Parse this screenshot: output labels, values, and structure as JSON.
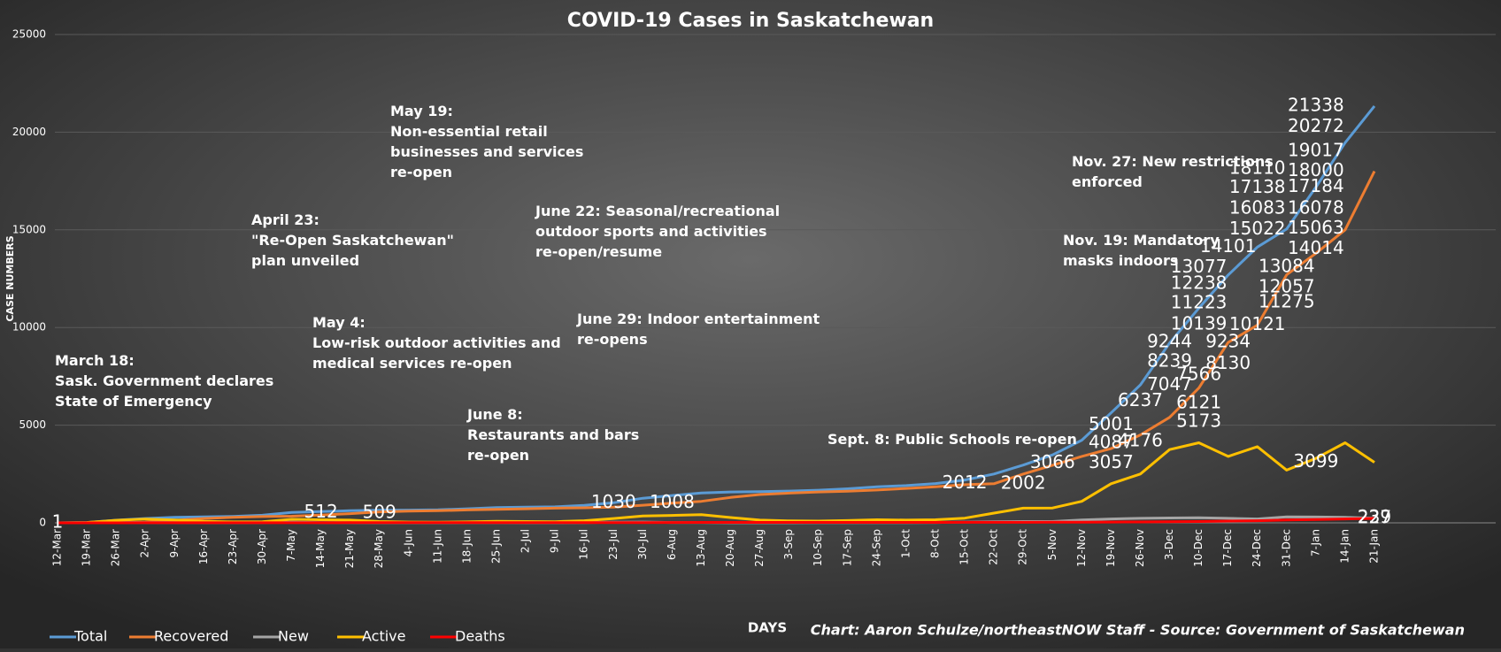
{
  "chart_data": {
    "type": "line",
    "title": "COVID-19 Cases in Saskatchewan",
    "x_label": "DAYS",
    "y_label": "CASE NUMBERS",
    "source": "Chart: Aaron Schulze/northeastNOW Staff - Source: Government of Saskatchewan",
    "categories": [
      "12-Mar",
      "19-Mar",
      "26-Mar",
      "2-Apr",
      "9-Apr",
      "16-Apr",
      "23-Apr",
      "30-Apr",
      "7-May",
      "14-May",
      "21-May",
      "28-May",
      "4-Jun",
      "11-Jun",
      "18-Jun",
      "25-Jun",
      "2-Jul",
      "9-Jul",
      "16-Jul",
      "23-Jul",
      "30-Jul",
      "6-Aug",
      "13-Aug",
      "20-Aug",
      "27-Aug",
      "3-Sep",
      "10-Sep",
      "17-Sep",
      "24-Sep",
      "1-Oct",
      "8-Oct",
      "15-Oct",
      "22-Oct",
      "29-Oct",
      "5-Nov",
      "12-Nov",
      "19-Nov",
      "26-Nov",
      "3-Dec",
      "10-Dec",
      "17-Dec",
      "24-Dec",
      "31-Dec",
      "7-Jan",
      "14-Jan",
      "21-Jan"
    ],
    "series": [
      {
        "name": "Total",
        "color": "#5b9bd5",
        "values": [
          2,
          20,
          134,
          220,
          285,
          305,
          331,
          389,
          531,
          573,
          622,
          641,
          653,
          665,
          720,
          777,
          800,
          819,
          890,
          1030,
          1261,
          1399,
          1528,
          1579,
          1599,
          1625,
          1671,
          1743,
          1846,
          1905,
          2012,
          2194,
          2502,
          2958,
          3480,
          4232,
          5630,
          7059,
          9205,
          10994,
          12686,
          14115,
          15040,
          17186,
          19462,
          21338
        ]
      },
      {
        "name": "Recovered",
        "color": "#ed7d31",
        "values": [
          0,
          0,
          2,
          30,
          130,
          220,
          280,
          320,
          340,
          400,
          470,
          560,
          600,
          620,
          660,
          690,
          720,
          750,
          770,
          800,
          900,
          1008,
          1100,
          1300,
          1450,
          1520,
          1580,
          1620,
          1680,
          1760,
          1850,
          1950,
          2002,
          2500,
          2950,
          3400,
          3800,
          4500,
          5400,
          6900,
          9234,
          10121,
          12700,
          13800,
          15000,
          18000
        ]
      },
      {
        "name": "New",
        "color": "#a5a5a5",
        "values": [
          1,
          5,
          20,
          15,
          10,
          5,
          5,
          10,
          30,
          10,
          10,
          5,
          5,
          5,
          10,
          10,
          5,
          5,
          15,
          30,
          40,
          20,
          20,
          5,
          5,
          5,
          10,
          15,
          15,
          10,
          20,
          40,
          60,
          70,
          70,
          150,
          200,
          230,
          250,
          260,
          230,
          200,
          310,
          300,
          280,
          239
        ]
      },
      {
        "name": "Active",
        "color": "#ffc000",
        "values": [
          2,
          20,
          130,
          190,
          150,
          80,
          50,
          60,
          180,
          160,
          140,
          70,
          40,
          35,
          50,
          80,
          70,
          60,
          110,
          220,
          350,
          380,
          420,
          270,
          140,
          100,
          90,
          120,
          160,
          140,
          160,
          240,
          500,
          750,
          760,
          1100,
          2000,
          2500,
          3750,
          4100,
          3400,
          3900,
          2700,
          3300,
          4100,
          3099
        ]
      },
      {
        "name": "Deaths",
        "color": "#ff0000",
        "values": [
          0,
          0,
          1,
          3,
          4,
          4,
          4,
          6,
          6,
          6,
          8,
          10,
          13,
          13,
          13,
          14,
          15,
          15,
          15,
          15,
          15,
          19,
          21,
          22,
          24,
          24,
          24,
          24,
          24,
          24,
          24,
          25,
          26,
          27,
          30,
          35,
          40,
          45,
          60,
          70,
          90,
          110,
          150,
          170,
          200,
          227
        ]
      }
    ],
    "data_labels": [
      {
        "value": 1,
        "x": "12-Mar"
      },
      {
        "value": 512,
        "x": "14-May"
      },
      {
        "value": 509,
        "x": "28-May"
      },
      {
        "value": 1030,
        "x": "23-Jul"
      },
      {
        "value": 1008,
        "x": "6-Aug"
      },
      {
        "value": 2012,
        "x": "15-Oct"
      },
      {
        "value": 2002,
        "x": "29-Oct"
      },
      {
        "value": 3066,
        "x": "5-Nov"
      },
      {
        "value": 3057,
        "x": "19-Nov"
      },
      {
        "value": 4087,
        "x": "19-Nov"
      },
      {
        "value": 4176,
        "x": "26-Nov"
      },
      {
        "value": 5001,
        "x": "19-Nov"
      },
      {
        "value": 6237,
        "x": "26-Nov"
      },
      {
        "value": 6121,
        "x": "10-Dec"
      },
      {
        "value": 7047,
        "x": "3-Dec"
      },
      {
        "value": 7566,
        "x": "10-Dec"
      },
      {
        "value": 8239,
        "x": "3-Dec"
      },
      {
        "value": 8130,
        "x": "17-Dec"
      },
      {
        "value": 9244,
        "x": "3-Dec"
      },
      {
        "value": 9234,
        "x": "17-Dec"
      },
      {
        "value": 10139,
        "x": "10-Dec"
      },
      {
        "value": 10121,
        "x": "24-Dec"
      },
      {
        "value": 11223,
        "x": "10-Dec"
      },
      {
        "value": 11275,
        "x": "31-Dec"
      },
      {
        "value": 12238,
        "x": "10-Dec"
      },
      {
        "value": 12057,
        "x": "31-Dec"
      },
      {
        "value": 13077,
        "x": "10-Dec"
      },
      {
        "value": 13084,
        "x": "31-Dec"
      },
      {
        "value": 14101,
        "x": "17-Dec"
      },
      {
        "value": 14014,
        "x": "7-Jan"
      },
      {
        "value": 15022,
        "x": "24-Dec"
      },
      {
        "value": 15063,
        "x": "7-Jan"
      },
      {
        "value": 16083,
        "x": "24-Dec"
      },
      {
        "value": 16078,
        "x": "7-Jan"
      },
      {
        "value": 17138,
        "x": "24-Dec"
      },
      {
        "value": 17184,
        "x": "7-Jan"
      },
      {
        "value": 18110,
        "x": "24-Dec"
      },
      {
        "value": 18000,
        "x": "7-Jan"
      },
      {
        "value": 19017,
        "x": "7-Jan"
      },
      {
        "value": 20272,
        "x": "7-Jan"
      },
      {
        "value": 21338,
        "x": "7-Jan"
      },
      {
        "value": 239,
        "x": "21-Jan"
      },
      {
        "value": 227,
        "x": "21-Jan"
      },
      {
        "value": 5173,
        "x": "10-Dec"
      },
      {
        "value": 3099,
        "x": "7-Jan"
      }
    ],
    "annotations": [
      [
        "March 18:",
        "Sask. Government declares",
        "State of Emergency"
      ],
      [
        "April 23:",
        "\"Re-Open Saskatchewan\"",
        "plan unveiled"
      ],
      [
        "May 4:",
        "Low-risk outdoor activities and",
        "medical services re-open"
      ],
      [
        "May 19:",
        "Non-essential retail",
        "businesses and services",
        "re-open"
      ],
      [
        "June 8:",
        "Restaurants and bars",
        "re-open"
      ],
      [
        "June 22: Seasonal/recreational",
        "outdoor sports and activities",
        "re-open/resume"
      ],
      [
        "June 29: Indoor entertainment",
        "re-opens"
      ],
      [
        "Sept. 8: Public Schools re-open"
      ],
      [
        "Nov. 19: Mandatory",
        "masks indoors"
      ],
      [
        "Nov. 27: New restrictions",
        "enforced"
      ]
    ],
    "ylim": [
      0,
      25000
    ],
    "yticks": [
      0,
      5000,
      10000,
      15000,
      20000,
      25000
    ],
    "grid": true,
    "legend": "bottom-left"
  }
}
